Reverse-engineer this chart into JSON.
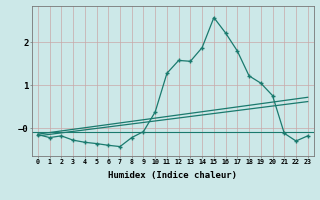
{
  "xlabel": "Humidex (Indice chaleur)",
  "ylabel": "",
  "bg_color": "#cce8e8",
  "line_color": "#1a7a6e",
  "grid_color": "#c8a8a8",
  "ylim": [
    -0.65,
    2.85
  ],
  "xlim": [
    -0.5,
    23.5
  ],
  "xtick_labels": [
    "0",
    "1",
    "2",
    "3",
    "4",
    "5",
    "6",
    "7",
    "8",
    "9",
    "10",
    "11",
    "12",
    "13",
    "14",
    "15",
    "16",
    "17",
    "18",
    "19",
    "20",
    "21",
    "22",
    "23"
  ],
  "series1_x": [
    0,
    1,
    2,
    3,
    4,
    5,
    6,
    7,
    8,
    9,
    10,
    11,
    12,
    13,
    14,
    15,
    16,
    17,
    18,
    19,
    20,
    21,
    22,
    23
  ],
  "series1_y": [
    -0.15,
    -0.22,
    -0.18,
    -0.28,
    -0.33,
    -0.36,
    -0.4,
    -0.43,
    -0.22,
    -0.08,
    0.38,
    1.28,
    1.58,
    1.56,
    1.88,
    2.58,
    2.22,
    1.8,
    1.22,
    1.05,
    0.76,
    -0.12,
    -0.3,
    -0.18
  ],
  "series2_x": [
    0,
    23
  ],
  "series2_y": [
    -0.18,
    0.62
  ],
  "series3_x": [
    0,
    23
  ],
  "series3_y": [
    -0.14,
    0.72
  ],
  "hline_y": -0.08,
  "figsize": [
    3.2,
    2.0
  ],
  "dpi": 100
}
